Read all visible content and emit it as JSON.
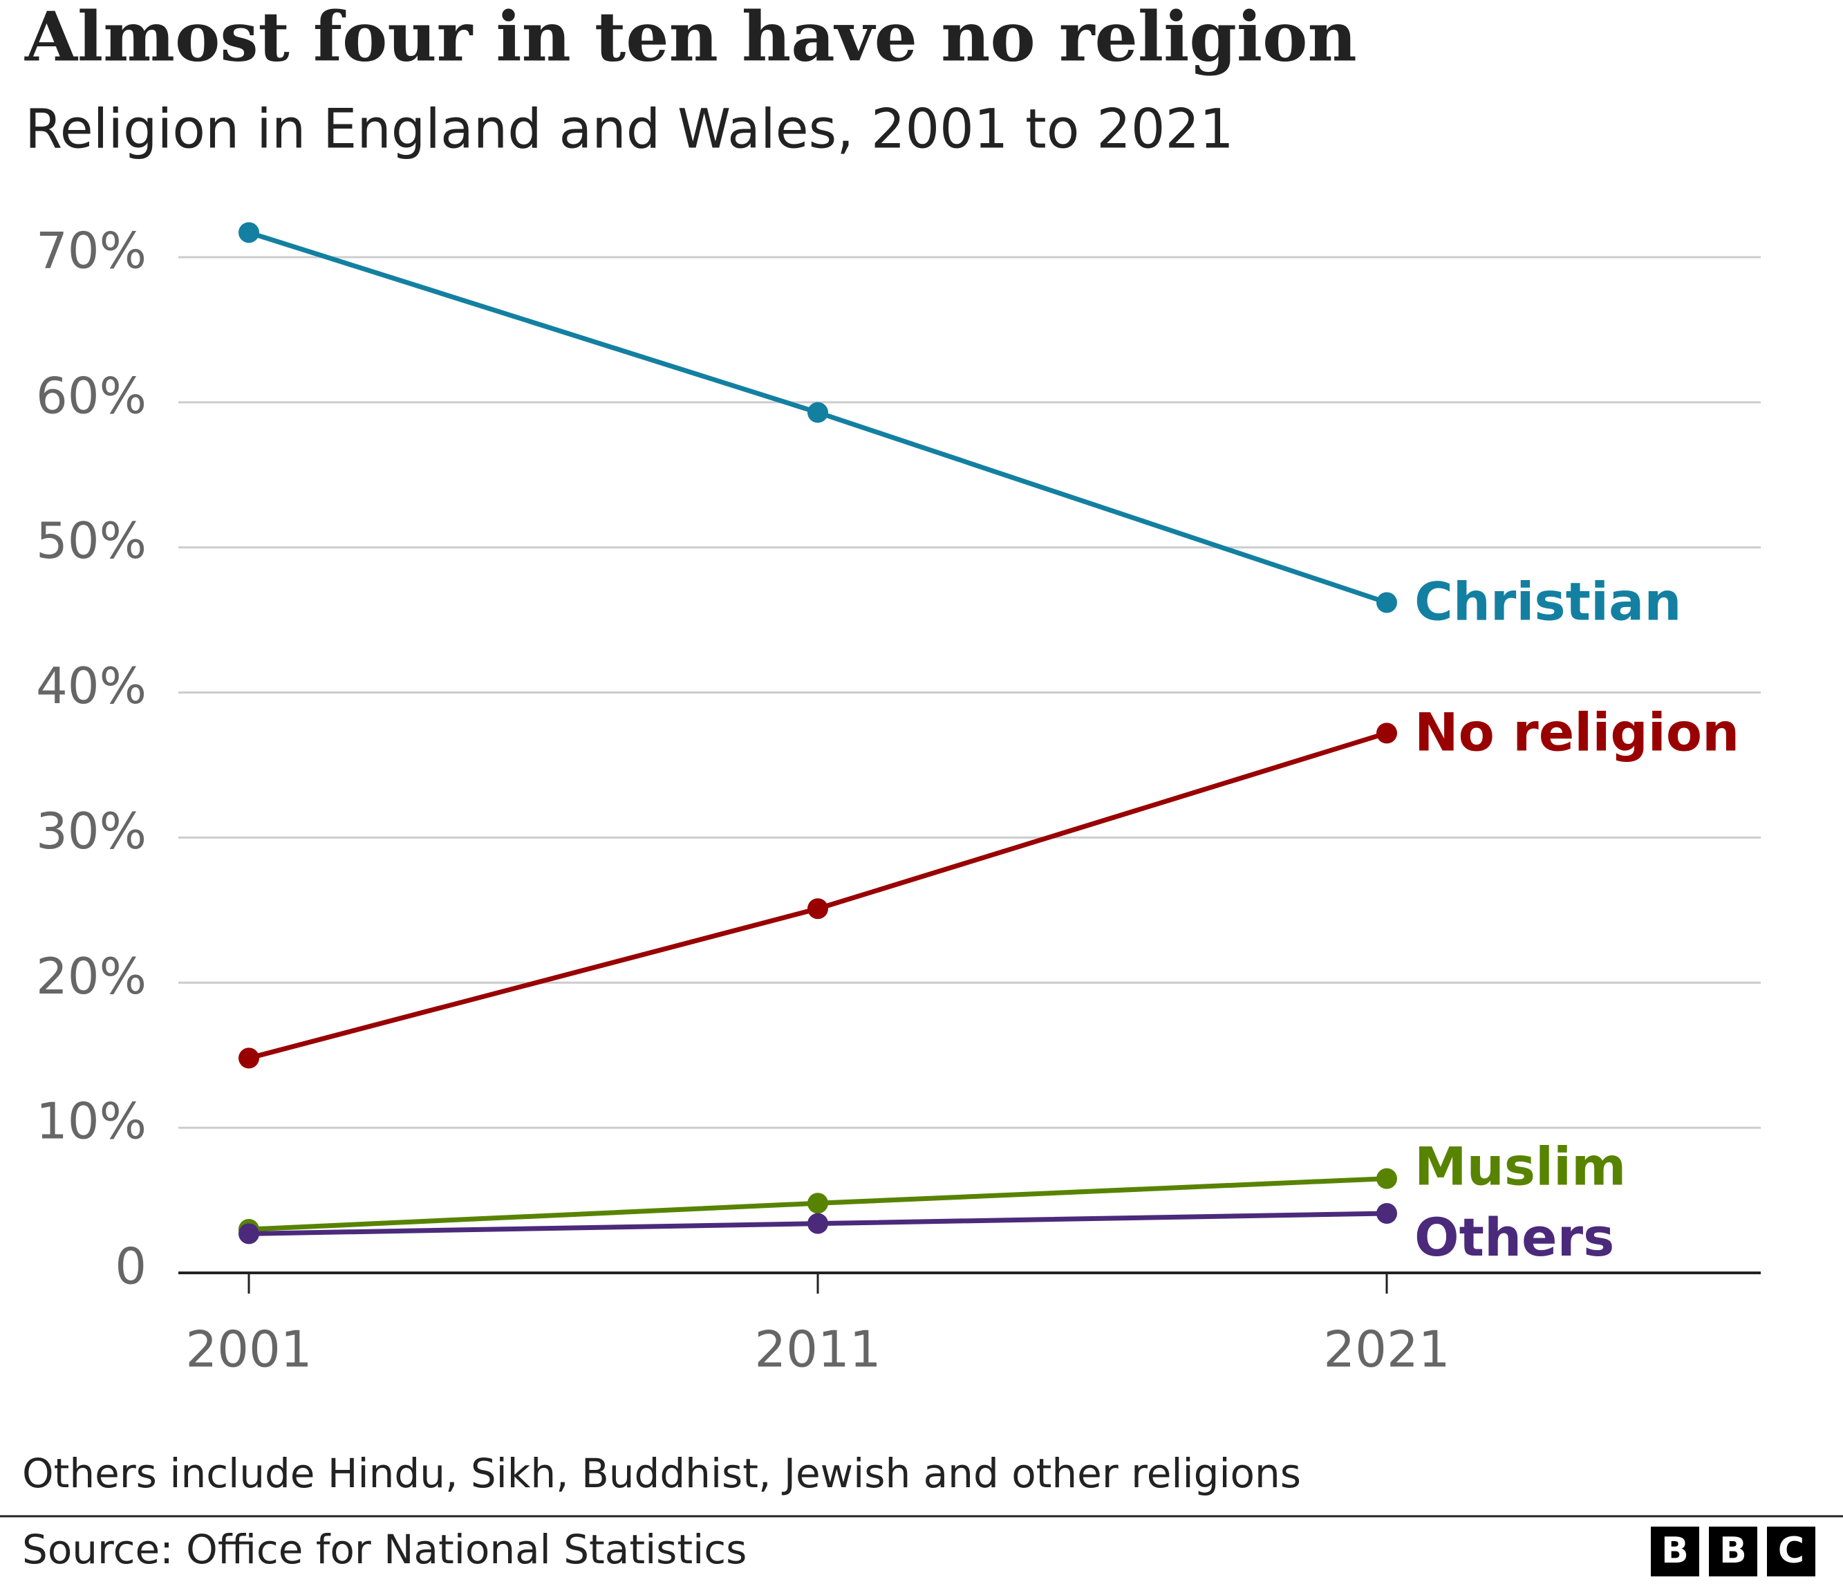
{
  "chart_data": {
    "type": "line",
    "title": "Almost four in ten have no religion",
    "subtitle": "Religion in England and Wales, 2001 to 2021",
    "categories": [
      "2001",
      "2011",
      "2021"
    ],
    "series": [
      {
        "name": "Christian",
        "color": "#1380a1",
        "values": [
          71.7,
          59.3,
          46.2
        ]
      },
      {
        "name": "No religion",
        "color": "#990000",
        "values": [
          14.8,
          25.1,
          37.2
        ]
      },
      {
        "name": "Muslim",
        "color": "#588300",
        "values": [
          3.0,
          4.8,
          6.5
        ]
      },
      {
        "name": "Others",
        "color": "#4b2a7b",
        "values": [
          2.7,
          3.4,
          4.1
        ]
      }
    ],
    "ylim": [
      0,
      70
    ],
    "yticks": [
      0,
      {
        "value": 10,
        "label": "10%"
      },
      {
        "value": 20,
        "label": "20%"
      },
      {
        "value": 30,
        "label": "30%"
      },
      {
        "value": 40,
        "label": "40%"
      },
      {
        "value": 50,
        "label": "50%"
      },
      {
        "value": 60,
        "label": "60%"
      },
      {
        "value": 70,
        "label": "70%"
      }
    ],
    "grid": true,
    "note": "Others include Hindu, Sikh, Buddhist, Jewish and other religions",
    "source": "Source: Office for National Statistics",
    "logo": [
      "B",
      "B",
      "C"
    ]
  }
}
